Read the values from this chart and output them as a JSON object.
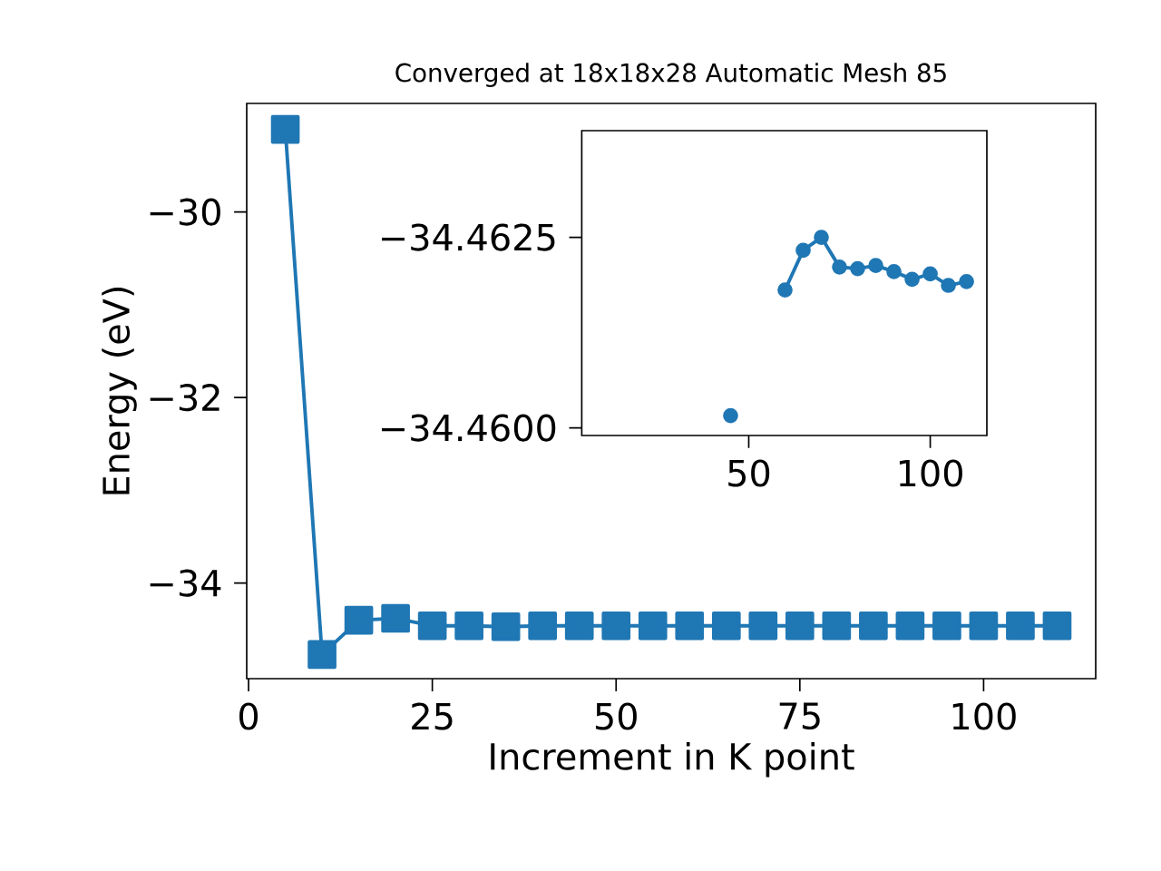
{
  "chart_data": [
    {
      "type": "line",
      "title": "Converged at 18x18x28 Automatic Mesh 85",
      "xlabel": "Increment in K point",
      "ylabel": "Energy (eV)",
      "x": [
        5,
        10,
        15,
        20,
        25,
        30,
        35,
        40,
        45,
        50,
        55,
        60,
        65,
        70,
        75,
        80,
        85,
        90,
        95,
        100,
        105,
        110
      ],
      "series": [
        {
          "color": "#1f77b4",
          "values": [
            -29.11,
            -34.77,
            -34.4,
            -34.38,
            -34.46,
            -34.46,
            -34.47,
            -34.46,
            -34.46,
            -34.46,
            -34.46,
            -34.46,
            -34.46,
            -34.46,
            -34.46,
            -34.46,
            -34.46,
            -34.46,
            -34.46,
            -34.46,
            -34.46,
            -34.46
          ]
        }
      ],
      "xlim": [
        -0.25,
        115.25
      ],
      "ylim": [
        -35.03,
        -28.83
      ],
      "xticks": [
        0,
        25,
        50,
        75,
        100
      ],
      "yticks": [
        {
          "value": -34,
          "label": "−34"
        },
        {
          "value": -32,
          "label": "−32"
        },
        {
          "value": -30,
          "label": "−30"
        }
      ],
      "grid": false,
      "marker": "square",
      "line_style": "solid"
    },
    {
      "type": "line",
      "x": [
        45,
        50,
        55,
        60,
        65,
        70,
        75,
        80,
        85,
        90,
        95,
        100,
        105,
        110
      ],
      "series": [
        {
          "color": "#1f77b4",
          "values": [
            -34.46016,
            null,
            null,
            -34.46181,
            -34.46233,
            -34.4625,
            -34.46211,
            -34.46209,
            -34.46213,
            -34.46205,
            -34.46195,
            -34.46202,
            -34.46187,
            -34.46192
          ]
        }
      ],
      "xlim": [
        4,
        115.6
      ],
      "ylim": [
        -34.4599,
        -34.4639
      ],
      "xticks": [
        50,
        100
      ],
      "yticks": [
        {
          "value": -34.4625,
          "label": "−34.4625"
        },
        {
          "value": -34.46,
          "label": "−34.4600"
        }
      ],
      "grid": false,
      "marker": "circle",
      "line_style": "solid"
    }
  ]
}
